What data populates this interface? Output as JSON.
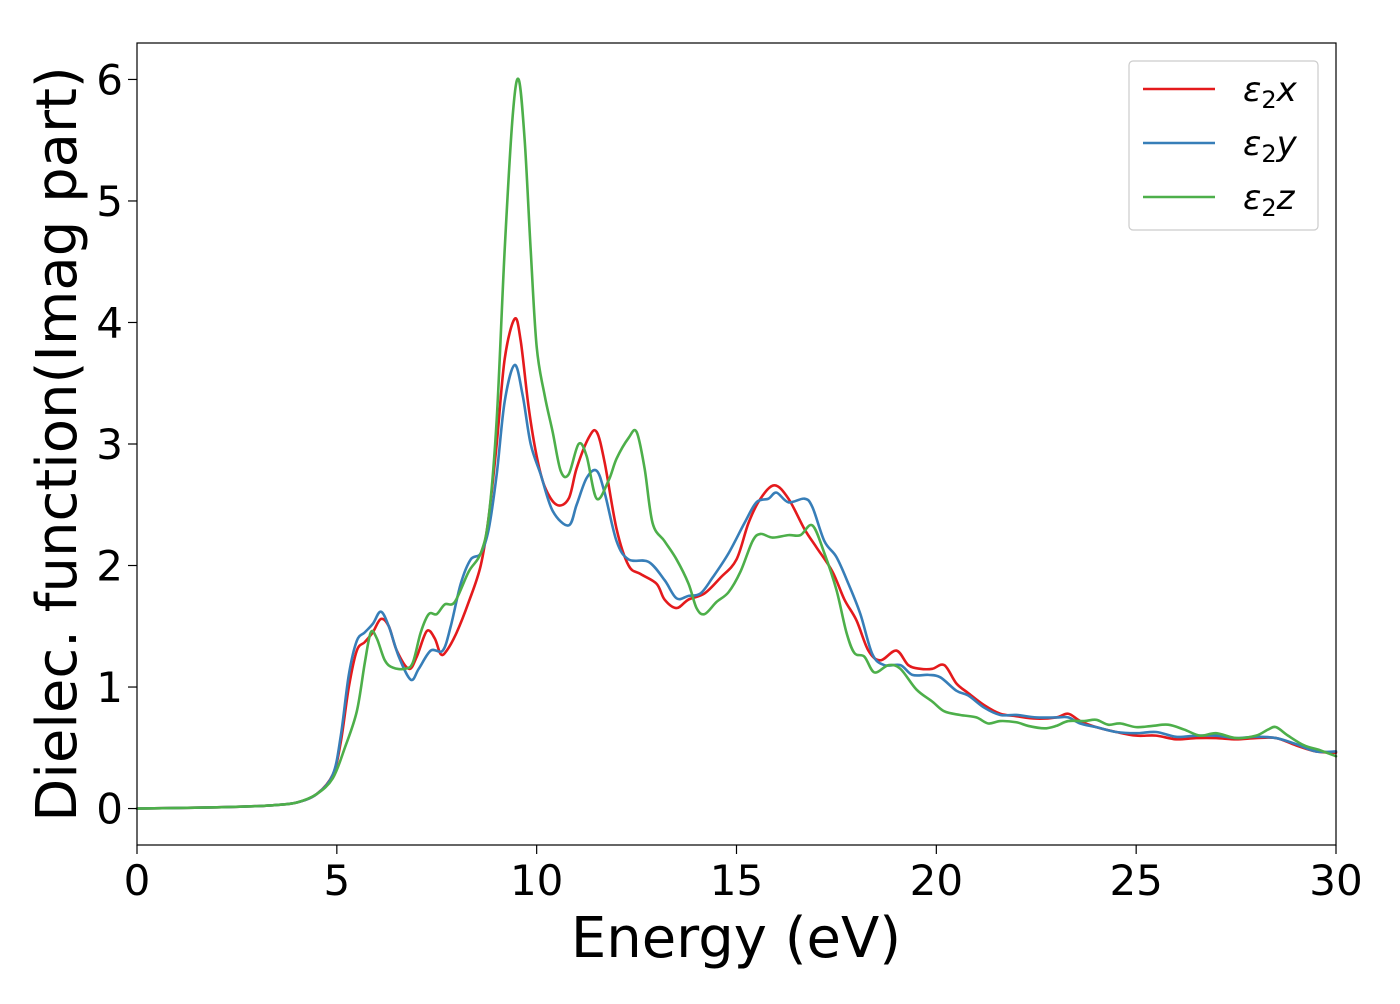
{
  "chart_data": {
    "type": "line",
    "title": "",
    "xlabel": "Energy (eV)",
    "ylabel": "Dielec. function(Imag part)",
    "xlim": [
      0,
      30
    ],
    "ylim": [
      -0.3,
      6.3
    ],
    "xticks": [
      0,
      5,
      10,
      15,
      20,
      25,
      30
    ],
    "xtick_labels": [
      "0",
      "5",
      "10",
      "15",
      "20",
      "25",
      "30"
    ],
    "yticks": [
      0,
      1,
      2,
      3,
      4,
      5,
      6
    ],
    "ytick_labels": [
      "0",
      "1",
      "2",
      "3",
      "4",
      "5",
      "6"
    ],
    "grid": false,
    "legend_position": "top-right",
    "series": [
      {
        "name_base": "ε",
        "name_sub": "2",
        "name_axis": "x",
        "color": "#e41a1c",
        "points": [
          [
            0,
            0
          ],
          [
            2,
            0.01
          ],
          [
            3,
            0.02
          ],
          [
            3.5,
            0.03
          ],
          [
            4,
            0.05
          ],
          [
            4.5,
            0.12
          ],
          [
            4.9,
            0.28
          ],
          [
            5.1,
            0.55
          ],
          [
            5.3,
            1.0
          ],
          [
            5.5,
            1.3
          ],
          [
            5.7,
            1.37
          ],
          [
            5.9,
            1.45
          ],
          [
            6.1,
            1.56
          ],
          [
            6.3,
            1.5
          ],
          [
            6.5,
            1.3
          ],
          [
            6.8,
            1.15
          ],
          [
            7.0,
            1.25
          ],
          [
            7.25,
            1.46
          ],
          [
            7.45,
            1.4
          ],
          [
            7.6,
            1.27
          ],
          [
            7.75,
            1.3
          ],
          [
            8.0,
            1.45
          ],
          [
            8.3,
            1.7
          ],
          [
            8.6,
            2.0
          ],
          [
            8.8,
            2.4
          ],
          [
            9.0,
            3.0
          ],
          [
            9.2,
            3.7
          ],
          [
            9.45,
            4.03
          ],
          [
            9.6,
            3.85
          ],
          [
            9.8,
            3.3
          ],
          [
            10.0,
            2.9
          ],
          [
            10.2,
            2.65
          ],
          [
            10.5,
            2.5
          ],
          [
            10.8,
            2.55
          ],
          [
            11.0,
            2.8
          ],
          [
            11.3,
            3.05
          ],
          [
            11.5,
            3.1
          ],
          [
            11.7,
            2.85
          ],
          [
            12.0,
            2.3
          ],
          [
            12.3,
            2.0
          ],
          [
            12.6,
            1.93
          ],
          [
            13.0,
            1.85
          ],
          [
            13.2,
            1.72
          ],
          [
            13.5,
            1.65
          ],
          [
            13.8,
            1.72
          ],
          [
            14.2,
            1.77
          ],
          [
            14.6,
            1.9
          ],
          [
            15.0,
            2.05
          ],
          [
            15.3,
            2.35
          ],
          [
            15.6,
            2.55
          ],
          [
            15.95,
            2.66
          ],
          [
            16.3,
            2.55
          ],
          [
            16.7,
            2.3
          ],
          [
            17.0,
            2.15
          ],
          [
            17.4,
            1.95
          ],
          [
            17.7,
            1.72
          ],
          [
            18.0,
            1.55
          ],
          [
            18.3,
            1.3
          ],
          [
            18.6,
            1.22
          ],
          [
            19.0,
            1.3
          ],
          [
            19.3,
            1.18
          ],
          [
            19.6,
            1.15
          ],
          [
            19.9,
            1.15
          ],
          [
            20.2,
            1.18
          ],
          [
            20.5,
            1.03
          ],
          [
            20.8,
            0.95
          ],
          [
            21.2,
            0.85
          ],
          [
            21.6,
            0.78
          ],
          [
            22.0,
            0.76
          ],
          [
            22.5,
            0.74
          ],
          [
            23.0,
            0.75
          ],
          [
            23.3,
            0.78
          ],
          [
            23.6,
            0.72
          ],
          [
            24.0,
            0.67
          ],
          [
            24.5,
            0.63
          ],
          [
            25.0,
            0.6
          ],
          [
            25.5,
            0.6
          ],
          [
            26.0,
            0.57
          ],
          [
            26.5,
            0.58
          ],
          [
            27.0,
            0.58
          ],
          [
            27.5,
            0.57
          ],
          [
            28.0,
            0.58
          ],
          [
            28.5,
            0.58
          ],
          [
            29.0,
            0.52
          ],
          [
            29.5,
            0.47
          ],
          [
            30.0,
            0.46
          ]
        ]
      },
      {
        "name_base": "ε",
        "name_sub": "2",
        "name_axis": "y",
        "color": "#377eb8",
        "points": [
          [
            0,
            0
          ],
          [
            2,
            0.01
          ],
          [
            3,
            0.02
          ],
          [
            3.5,
            0.03
          ],
          [
            4,
            0.05
          ],
          [
            4.5,
            0.12
          ],
          [
            4.9,
            0.28
          ],
          [
            5.1,
            0.6
          ],
          [
            5.3,
            1.1
          ],
          [
            5.5,
            1.38
          ],
          [
            5.7,
            1.45
          ],
          [
            5.9,
            1.52
          ],
          [
            6.1,
            1.62
          ],
          [
            6.3,
            1.5
          ],
          [
            6.55,
            1.25
          ],
          [
            6.85,
            1.06
          ],
          [
            7.05,
            1.15
          ],
          [
            7.35,
            1.3
          ],
          [
            7.65,
            1.3
          ],
          [
            7.85,
            1.5
          ],
          [
            8.1,
            1.85
          ],
          [
            8.35,
            2.05
          ],
          [
            8.6,
            2.1
          ],
          [
            8.8,
            2.3
          ],
          [
            9.0,
            2.75
          ],
          [
            9.2,
            3.35
          ],
          [
            9.45,
            3.65
          ],
          [
            9.65,
            3.4
          ],
          [
            9.85,
            3.0
          ],
          [
            10.1,
            2.75
          ],
          [
            10.4,
            2.45
          ],
          [
            10.8,
            2.33
          ],
          [
            11.0,
            2.5
          ],
          [
            11.25,
            2.72
          ],
          [
            11.5,
            2.78
          ],
          [
            11.7,
            2.6
          ],
          [
            12.0,
            2.2
          ],
          [
            12.3,
            2.05
          ],
          [
            12.8,
            2.03
          ],
          [
            13.2,
            1.88
          ],
          [
            13.5,
            1.73
          ],
          [
            13.8,
            1.75
          ],
          [
            14.1,
            1.77
          ],
          [
            14.4,
            1.9
          ],
          [
            14.8,
            2.1
          ],
          [
            15.2,
            2.35
          ],
          [
            15.5,
            2.52
          ],
          [
            15.8,
            2.55
          ],
          [
            16.0,
            2.6
          ],
          [
            16.3,
            2.52
          ],
          [
            16.7,
            2.55
          ],
          [
            16.9,
            2.48
          ],
          [
            17.2,
            2.2
          ],
          [
            17.5,
            2.07
          ],
          [
            17.8,
            1.85
          ],
          [
            18.1,
            1.6
          ],
          [
            18.4,
            1.27
          ],
          [
            18.7,
            1.18
          ],
          [
            19.1,
            1.18
          ],
          [
            19.4,
            1.1
          ],
          [
            19.8,
            1.1
          ],
          [
            20.1,
            1.08
          ],
          [
            20.5,
            0.97
          ],
          [
            20.8,
            0.93
          ],
          [
            21.2,
            0.83
          ],
          [
            21.6,
            0.77
          ],
          [
            22.0,
            0.77
          ],
          [
            22.5,
            0.75
          ],
          [
            23.0,
            0.75
          ],
          [
            23.3,
            0.75
          ],
          [
            23.6,
            0.7
          ],
          [
            24.0,
            0.67
          ],
          [
            24.5,
            0.63
          ],
          [
            25.0,
            0.62
          ],
          [
            25.5,
            0.63
          ],
          [
            26.0,
            0.59
          ],
          [
            26.5,
            0.6
          ],
          [
            27.0,
            0.6
          ],
          [
            27.5,
            0.58
          ],
          [
            28.0,
            0.59
          ],
          [
            28.5,
            0.58
          ],
          [
            29.0,
            0.53
          ],
          [
            29.5,
            0.47
          ],
          [
            30.0,
            0.47
          ]
        ]
      },
      {
        "name_base": "ε",
        "name_sub": "2",
        "name_axis": "z",
        "color": "#4daf4a",
        "points": [
          [
            0,
            0
          ],
          [
            2,
            0.01
          ],
          [
            3,
            0.02
          ],
          [
            3.5,
            0.03
          ],
          [
            4,
            0.05
          ],
          [
            4.5,
            0.12
          ],
          [
            4.9,
            0.25
          ],
          [
            5.2,
            0.5
          ],
          [
            5.5,
            0.8
          ],
          [
            5.7,
            1.2
          ],
          [
            5.85,
            1.45
          ],
          [
            6.0,
            1.4
          ],
          [
            6.2,
            1.22
          ],
          [
            6.4,
            1.16
          ],
          [
            6.7,
            1.15
          ],
          [
            6.9,
            1.2
          ],
          [
            7.1,
            1.45
          ],
          [
            7.3,
            1.6
          ],
          [
            7.5,
            1.6
          ],
          [
            7.7,
            1.68
          ],
          [
            7.95,
            1.7
          ],
          [
            8.3,
            1.95
          ],
          [
            8.6,
            2.1
          ],
          [
            8.8,
            2.4
          ],
          [
            9.0,
            3.2
          ],
          [
            9.2,
            4.6
          ],
          [
            9.4,
            5.7
          ],
          [
            9.55,
            6.0
          ],
          [
            9.7,
            5.5
          ],
          [
            9.85,
            4.6
          ],
          [
            10.0,
            3.8
          ],
          [
            10.2,
            3.4
          ],
          [
            10.4,
            3.1
          ],
          [
            10.6,
            2.78
          ],
          [
            10.8,
            2.75
          ],
          [
            11.05,
            3.0
          ],
          [
            11.25,
            2.9
          ],
          [
            11.5,
            2.55
          ],
          [
            11.8,
            2.7
          ],
          [
            12.0,
            2.88
          ],
          [
            12.3,
            3.05
          ],
          [
            12.5,
            3.1
          ],
          [
            12.7,
            2.8
          ],
          [
            12.9,
            2.35
          ],
          [
            13.2,
            2.2
          ],
          [
            13.5,
            2.05
          ],
          [
            13.8,
            1.85
          ],
          [
            14.0,
            1.65
          ],
          [
            14.2,
            1.6
          ],
          [
            14.5,
            1.7
          ],
          [
            14.8,
            1.78
          ],
          [
            15.1,
            1.95
          ],
          [
            15.4,
            2.2
          ],
          [
            15.6,
            2.26
          ],
          [
            15.9,
            2.23
          ],
          [
            16.3,
            2.25
          ],
          [
            16.6,
            2.25
          ],
          [
            16.9,
            2.33
          ],
          [
            17.2,
            2.1
          ],
          [
            17.5,
            1.8
          ],
          [
            17.75,
            1.45
          ],
          [
            17.95,
            1.28
          ],
          [
            18.2,
            1.25
          ],
          [
            18.45,
            1.12
          ],
          [
            18.8,
            1.18
          ],
          [
            19.1,
            1.15
          ],
          [
            19.5,
            0.98
          ],
          [
            19.9,
            0.88
          ],
          [
            20.2,
            0.8
          ],
          [
            20.6,
            0.77
          ],
          [
            21.0,
            0.75
          ],
          [
            21.3,
            0.7
          ],
          [
            21.6,
            0.72
          ],
          [
            22.0,
            0.71
          ],
          [
            22.3,
            0.68
          ],
          [
            22.7,
            0.66
          ],
          [
            23.0,
            0.68
          ],
          [
            23.3,
            0.72
          ],
          [
            23.7,
            0.72
          ],
          [
            24.0,
            0.73
          ],
          [
            24.3,
            0.69
          ],
          [
            24.6,
            0.7
          ],
          [
            25.0,
            0.67
          ],
          [
            25.4,
            0.68
          ],
          [
            25.8,
            0.69
          ],
          [
            26.2,
            0.65
          ],
          [
            26.6,
            0.6
          ],
          [
            27.0,
            0.62
          ],
          [
            27.5,
            0.58
          ],
          [
            28.0,
            0.6
          ],
          [
            28.3,
            0.65
          ],
          [
            28.5,
            0.67
          ],
          [
            28.8,
            0.6
          ],
          [
            29.2,
            0.52
          ],
          [
            29.6,
            0.48
          ],
          [
            30.0,
            0.43
          ]
        ]
      }
    ]
  }
}
